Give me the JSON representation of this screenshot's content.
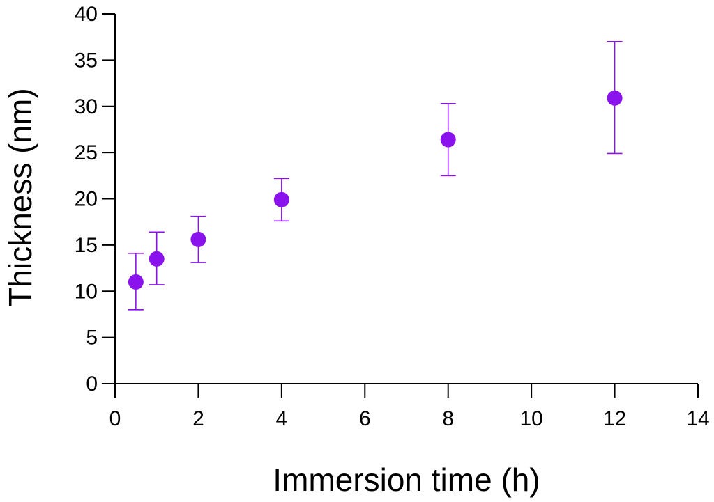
{
  "chart_data": {
    "type": "scatter",
    "title": "",
    "xlabel": "Immersion time (h)",
    "ylabel": "Thickness (nm)",
    "xlim": [
      0,
      14
    ],
    "ylim": [
      0,
      40
    ],
    "xticks": [
      0,
      2,
      4,
      6,
      8,
      10,
      12,
      14
    ],
    "yticks": [
      0,
      5,
      10,
      15,
      20,
      25,
      30,
      35,
      40
    ],
    "grid": false,
    "series": [
      {
        "name": "Thickness",
        "color": "#8a12ec",
        "points": [
          {
            "x": 0.5,
            "y": 11.0,
            "err_low": 8.0,
            "err_high": 14.1
          },
          {
            "x": 1,
            "y": 13.5,
            "err_low": 10.7,
            "err_high": 16.4
          },
          {
            "x": 2,
            "y": 15.6,
            "err_low": 13.1,
            "err_high": 18.1
          },
          {
            "x": 4,
            "y": 19.9,
            "err_low": 17.6,
            "err_high": 22.2
          },
          {
            "x": 8,
            "y": 26.4,
            "err_low": 22.5,
            "err_high": 30.3
          },
          {
            "x": 12,
            "y": 30.9,
            "err_low": 24.9,
            "err_high": 37.0
          }
        ]
      }
    ]
  }
}
